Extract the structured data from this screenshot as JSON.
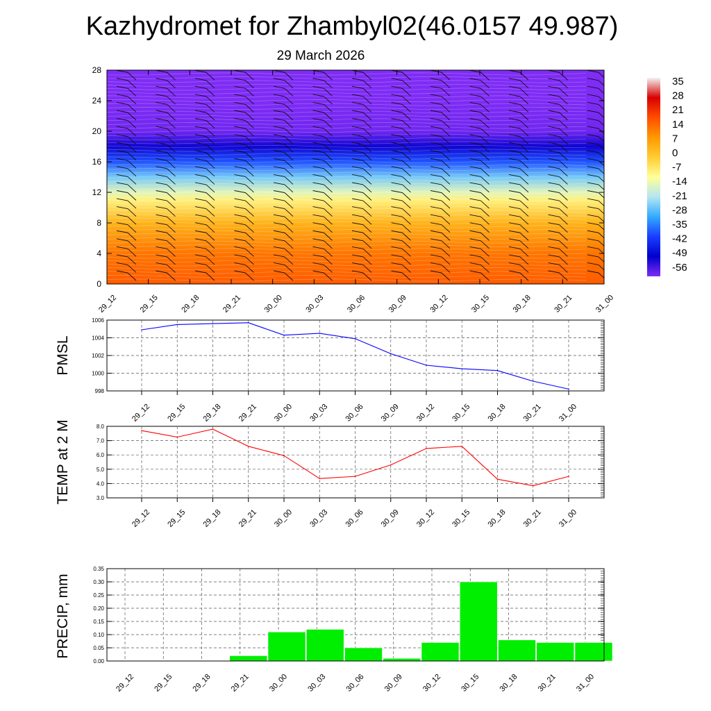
{
  "title": "Kazhydromet for Zhambyl02(46.0157 49.987)",
  "subtitle": "29 March 2026",
  "time_labels": [
    "29_12",
    "29_15",
    "29_18",
    "29_21",
    "30_00",
    "30_03",
    "30_06",
    "30_09",
    "30_12",
    "30_15",
    "30_18",
    "30_21",
    "31_00"
  ],
  "chart_data": [
    {
      "type": "heatmap",
      "title": "",
      "ylabel": "",
      "x": [
        "29_12",
        "29_15",
        "29_18",
        "29_21",
        "30_00",
        "30_03",
        "30_06",
        "30_09",
        "30_12",
        "30_15",
        "30_18",
        "30_21",
        "31_00"
      ],
      "yticks": [
        0,
        4,
        8,
        12,
        16,
        20,
        24,
        28
      ],
      "ylim": [
        0,
        28
      ],
      "colorbar": {
        "labels": [
          "35",
          "28",
          "21",
          "14",
          "7",
          "0",
          "-7",
          "-14",
          "-21",
          "-28",
          "-35",
          "-42",
          "-49",
          "-56"
        ],
        "colors": [
          "#f2f2f2",
          "#d90000",
          "#ff4d00",
          "#ff9900",
          "#ffcc33",
          "#ffff99",
          "#b3e6f2",
          "#33aaff",
          "#1a3dff",
          "#0000cc",
          "#7f2cf5"
        ]
      },
      "profile": [
        {
          "level": 0,
          "value": 15
        },
        {
          "level": 4,
          "value": 12
        },
        {
          "level": 8,
          "value": 3
        },
        {
          "level": 11,
          "value": -8
        },
        {
          "level": 12,
          "value": -14
        },
        {
          "level": 14,
          "value": -24
        },
        {
          "level": 16,
          "value": -36
        },
        {
          "level": 18,
          "value": -48
        },
        {
          "level": 20,
          "value": -55
        },
        {
          "level": 24,
          "value": -56
        },
        {
          "level": 28,
          "value": -62
        }
      ]
    },
    {
      "type": "line",
      "ylabel": "PMSL",
      "x": [
        "29_12",
        "29_15",
        "29_18",
        "29_21",
        "30_00",
        "30_03",
        "30_06",
        "30_09",
        "30_12",
        "30_15",
        "30_18",
        "30_21",
        "31_00"
      ],
      "ylim": [
        998,
        1006
      ],
      "yticks": [
        "998",
        "1000",
        "1002",
        "1004",
        "1006"
      ],
      "grid": true,
      "series": [
        {
          "color": "#0000ff",
          "values": [
            1004.9,
            1005.5,
            1005.6,
            1005.7,
            1004.3,
            1004.5,
            1003.9,
            1002.2,
            1000.9,
            1000.5,
            1000.3,
            999.1,
            998.2
          ]
        }
      ]
    },
    {
      "type": "line",
      "ylabel": "TEMP at 2 M",
      "x": [
        "29_12",
        "29_15",
        "29_18",
        "29_21",
        "30_00",
        "30_03",
        "30_06",
        "30_09",
        "30_12",
        "30_15",
        "30_18",
        "30_21",
        "31_00"
      ],
      "ylim": [
        3,
        8
      ],
      "yticks": [
        "3.0",
        "4.0",
        "5.0",
        "6.0",
        "7.0",
        "8.0"
      ],
      "grid": true,
      "series": [
        {
          "color": "#ff0000",
          "values": [
            7.7,
            7.25,
            7.8,
            6.6,
            5.95,
            4.35,
            4.5,
            5.3,
            6.45,
            6.6,
            4.3,
            3.85,
            4.5
          ]
        }
      ]
    },
    {
      "type": "bar",
      "ylabel": "PRECIP, mm",
      "categories": [
        "29_12",
        "29_15",
        "29_18",
        "29_21",
        "30_00",
        "30_03",
        "30_06",
        "30_09",
        "30_12",
        "30_15",
        "30_18",
        "30_21",
        "31_00"
      ],
      "values": [
        0,
        0,
        0,
        0.02,
        0.11,
        0.12,
        0.05,
        0.01,
        0.07,
        0.3,
        0.08,
        0.07,
        0.07
      ],
      "ylim": [
        0,
        0.35
      ],
      "yticks": [
        "0.00",
        "0.05",
        "0.10",
        "0.15",
        "0.20",
        "0.25",
        "0.30",
        "0.35"
      ],
      "grid": true,
      "bar_color": "#00ee00"
    }
  ]
}
